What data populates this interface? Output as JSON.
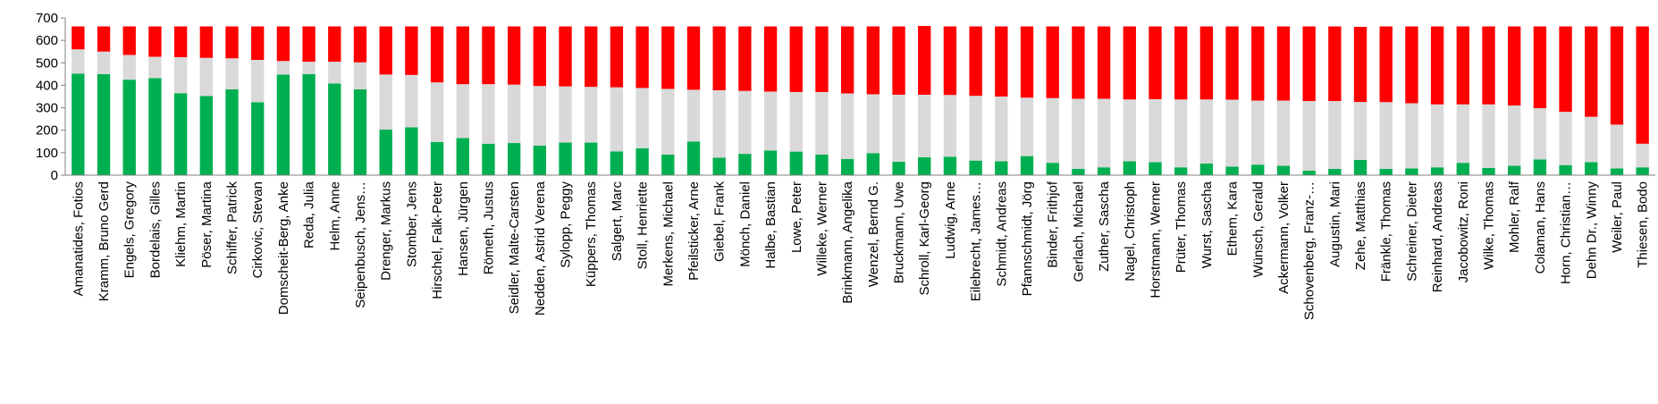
{
  "chart_data": {
    "type": "bar",
    "stacked": true,
    "title": "",
    "xlabel": "",
    "ylabel": "",
    "ylim": [
      0,
      700
    ],
    "yticks": [
      0,
      100,
      200,
      300,
      400,
      500,
      600,
      700
    ],
    "grid": false,
    "legend": "none",
    "colors": [
      "#00b050",
      "#d9d9d9",
      "#ff0000"
    ],
    "categories": [
      "Amanatides, Fotios",
      "Kramm, Bruno Gerd",
      "Engels, Gregory",
      "Bordelais, Gilles",
      "Kliehm, Martin",
      "Pöser, Martina",
      "Schiffer, Patrick",
      "Cirkovic, Stevan",
      "Domscheit-Berg, Anke",
      "Reda, Julia",
      "Helm, Anne",
      "Seipenbusch, Jens…",
      "Drenger, Markus",
      "Stomber, Jens",
      "Hirschel, Falk-Peter",
      "Hansen, Jürgen",
      "Römeth, Justus",
      "Seidler, Malte-Carsten",
      "Nedden, Astrid Verena",
      "Sylopp, Peggy",
      "Küppers, Thomas",
      "Salgert, Marc",
      "Stoll, Henriette",
      "Merkens, Michael",
      "Pfeilsticker, Arne",
      "Giebel, Frank",
      "Mönch, Daniel",
      "Halbe, Bastian",
      "Lowe, Peter",
      "Willeke, Werner",
      "Brinkmann, Angelika",
      "Wenzel, Bernd G.",
      "Bruckmann, Uwe",
      "Schroll, Karl-Georg",
      "Ludwig, Arne",
      "Eilebrecht, James…",
      "Schmidt, Andreas",
      "Pfannschmidt, Jörg",
      "Binder, Frithjof",
      "Gerlach, Michael",
      "Zuther, Sascha",
      "Nagel, Christoph",
      "Horstmann, Werner",
      "Prüter, Thomas",
      "Wurst, Sascha",
      "Ethem, Kara",
      "Wünsch, Gerald",
      "Ackermann, Volker",
      "Schovenberg, Franz-…",
      "Augustin, Mari",
      "Zehe, Matthias",
      "Fränkle, Thomas",
      "Schreiner, Dieter",
      "Reinhard, Andreas",
      "Jacobowitz, Roni",
      "Wilke, Thomas",
      "Mohler, Ralf",
      "Colaman, Hans",
      "Horn, Christian…",
      "Dehn Dr., Winny",
      "Weiler, Paul",
      "Thiesen, Bodo"
    ],
    "series": [
      {
        "values": [
          452,
          450,
          425,
          432,
          365,
          352,
          382,
          325,
          448,
          450,
          408,
          382,
          203,
          213,
          148,
          165,
          140,
          143,
          132,
          145,
          145,
          106,
          120,
          92,
          150,
          78,
          95,
          110,
          105,
          92,
          72,
          98,
          60,
          80,
          82,
          65,
          62,
          85,
          55,
          28,
          35,
          62,
          58,
          35,
          52,
          38,
          47,
          42,
          20,
          28,
          68,
          28,
          30,
          35,
          55,
          32,
          42,
          70,
          45,
          58,
          30,
          35
        ]
      },
      {
        "values": [
          108,
          100,
          110,
          95,
          160,
          170,
          138,
          188,
          60,
          55,
          97,
          120,
          245,
          233,
          265,
          240,
          265,
          260,
          265,
          250,
          248,
          285,
          268,
          292,
          230,
          300,
          280,
          262,
          265,
          278,
          292,
          262,
          298,
          278,
          275,
          288,
          288,
          260,
          288,
          312,
          305,
          275,
          280,
          302,
          285,
          298,
          285,
          290,
          310,
          302,
          258,
          297,
          290,
          280,
          260,
          283,
          268,
          228,
          237,
          202,
          195,
          105
        ]
      },
      {
        "values": [
          102,
          112,
          127,
          135,
          137,
          140,
          142,
          149,
          154,
          157,
          157,
          160,
          214,
          216,
          249,
          257,
          257,
          259,
          265,
          267,
          269,
          271,
          274,
          278,
          282,
          284,
          287,
          290,
          292,
          292,
          298,
          302,
          304,
          306,
          305,
          309,
          312,
          317,
          319,
          322,
          322,
          325,
          324,
          325,
          325,
          326,
          330,
          330,
          332,
          332,
          334,
          337,
          342,
          347,
          347,
          347,
          352,
          364,
          380,
          402,
          437,
          522
        ]
      }
    ]
  }
}
